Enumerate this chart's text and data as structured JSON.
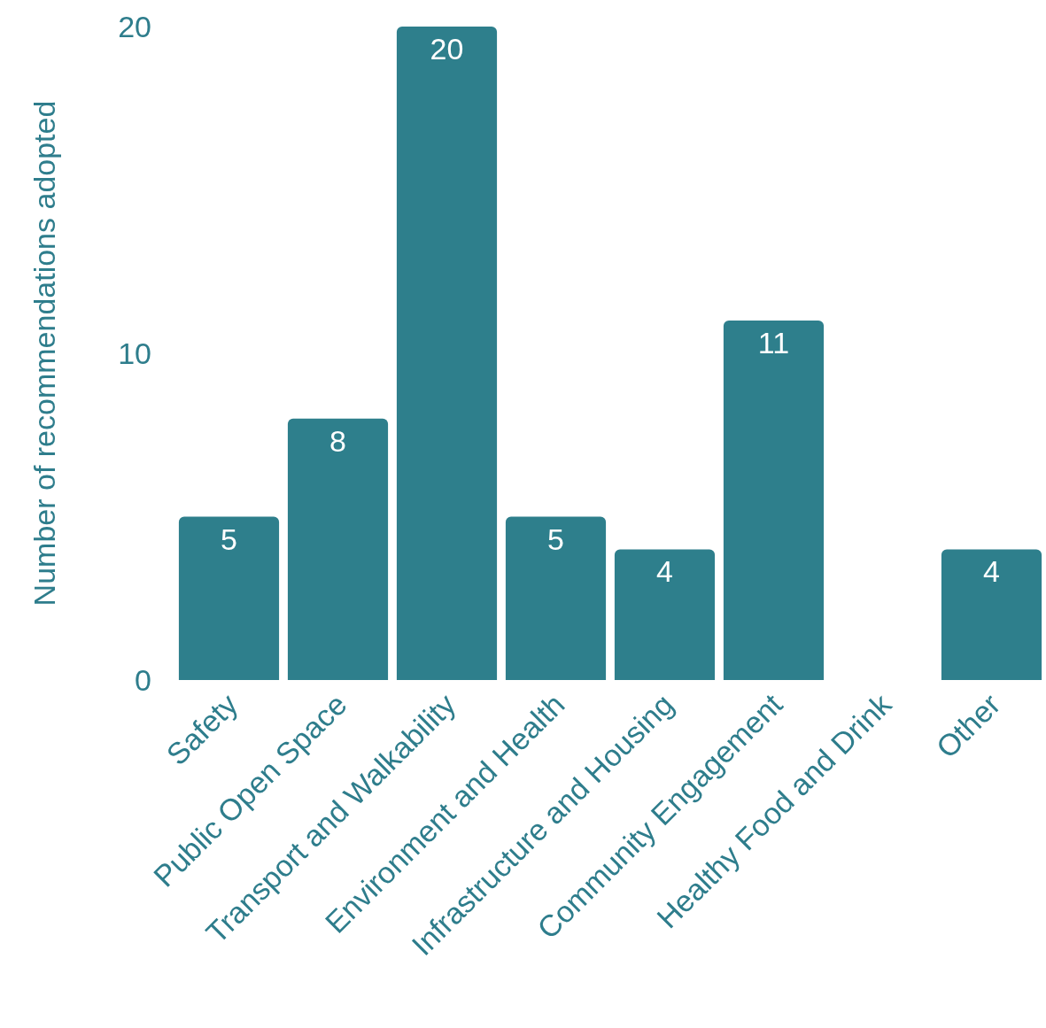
{
  "chart_data": {
    "type": "bar",
    "ylabel": "Number of recommendations adopted",
    "categories": [
      "Safety",
      "Public Open Space",
      "Transport and Walkability",
      "Environment and Health",
      "Infrastructure and Housing",
      "Community Engagement",
      "Healthy Food and Drink",
      "Other"
    ],
    "values": [
      5,
      8,
      20,
      5,
      4,
      11,
      0,
      4
    ],
    "value_labels": [
      "5",
      "8",
      "20",
      "5",
      "4",
      "11",
      null,
      "4"
    ],
    "color": "#2e7f8c",
    "ylim": [
      0,
      20
    ],
    "yticks": [
      0,
      10,
      20
    ],
    "legend": false
  }
}
